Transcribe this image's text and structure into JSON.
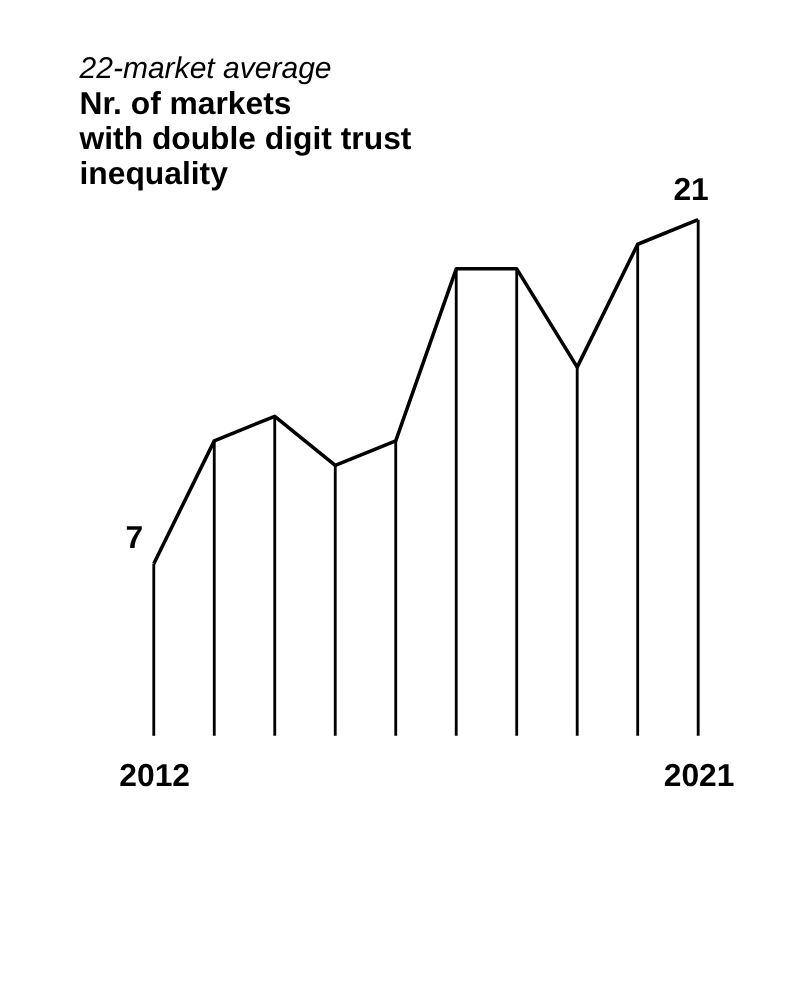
{
  "chart_data": {
    "type": "line",
    "subtitle": "22-market average",
    "title": "Nr. of markets\nwith double digit trust\ninequality",
    "categories": [
      "2012",
      null,
      null,
      null,
      null,
      null,
      null,
      null,
      null,
      "2021"
    ],
    "series": [
      {
        "type": "bar",
        "color": "#000000",
        "values": [
          7,
          12,
          13,
          11,
          12,
          19,
          19,
          15,
          20,
          21
        ]
      },
      {
        "color": "#000000",
        "values": [
          7,
          12,
          13,
          11,
          12,
          19,
          19,
          15,
          20,
          21
        ],
        "value_labels": [
          "7",
          null,
          null,
          null,
          null,
          null,
          null,
          null,
          null,
          "21"
        ]
      }
    ],
    "marker": "none",
    "line_style": "solid"
  }
}
